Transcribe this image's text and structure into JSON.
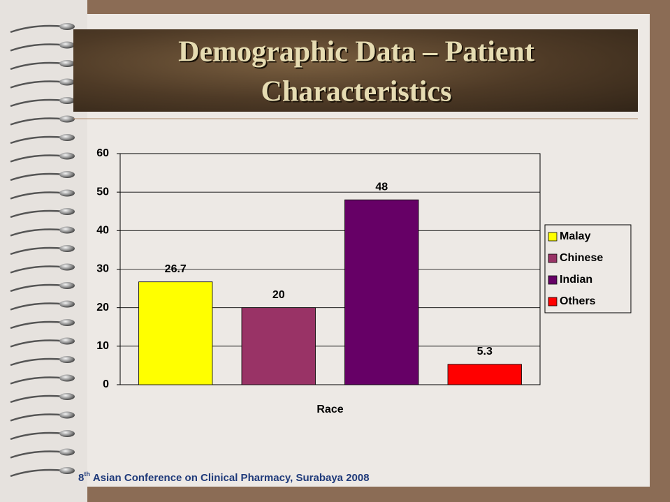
{
  "slide": {
    "title": [
      "Demographic Data – Patient",
      "Characteristics"
    ],
    "footer": {
      "number": "8",
      "suffix": "th",
      "text": "Asian Conference on Clinical Pharmacy, Surabaya 2008"
    }
  },
  "chart_data": {
    "type": "bar",
    "x_label": "Race",
    "categories": [
      null
    ],
    "series": [
      {
        "name": "Malay",
        "color": "#FFFF00",
        "values": [
          26.7
        ]
      },
      {
        "name": "Chinese",
        "color": "#993366",
        "values": [
          20
        ]
      },
      {
        "name": "Indian",
        "color": "#660066",
        "values": [
          48
        ]
      },
      {
        "name": "Others",
        "color": "#FF0000",
        "values": [
          5.3
        ]
      }
    ],
    "ylim": [
      0,
      60
    ],
    "yticks": [
      0,
      10,
      20,
      30,
      40,
      50,
      60
    ],
    "grid": true,
    "legend": "right",
    "value_labels": true
  }
}
